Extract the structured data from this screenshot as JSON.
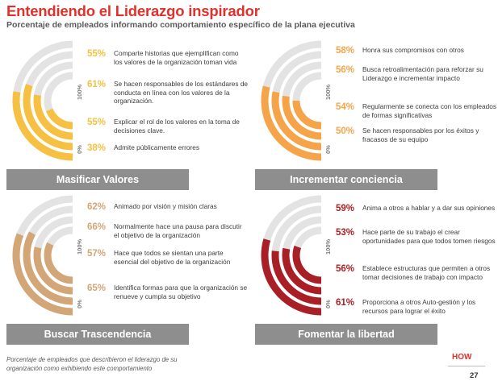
{
  "header": {
    "title": "Entendiendo el Liderazgo inspirador",
    "subtitle": "Porcentaje de empleados informando comportamiento específico de la plana ejecutiva"
  },
  "scale": {
    "max_label": "100%",
    "min_label": "0%"
  },
  "colors": {
    "track": "#e3e3e3",
    "band": "#8e8e8e",
    "title": "#e0312c"
  },
  "chart_data": [
    {
      "type": "radial-bar",
      "title": "Masificar Valores",
      "color": "#f6c142",
      "range": [
        0,
        100
      ],
      "items": [
        {
          "value": 55,
          "label": "55%",
          "text": "Comparte historias que ejemplifican como los valores de la organización toman vida"
        },
        {
          "value": 61,
          "label": "61%",
          "text": "Se hacen responsables de los estándares de conducta en línea con los valores de la organización."
        },
        {
          "value": 55,
          "label": "55%",
          "text": "Explicar el rol de los valores en la toma de decisiones clave."
        },
        {
          "value": 38,
          "label": "38%",
          "text": "Admite públicamente errores"
        }
      ]
    },
    {
      "type": "radial-bar",
      "title": "Incrementar conciencia",
      "color": "#f6a44a",
      "range": [
        0,
        100
      ],
      "items": [
        {
          "value": 58,
          "label": "58%",
          "text": "Honra sus compromisos con otros"
        },
        {
          "value": 56,
          "label": "56%",
          "text": "Busca retroalimentación para reforzar su Liderazgo e incrementar impacto"
        },
        {
          "value": 54,
          "label": "54%",
          "text": "Regularmente se conecta con los empleados de formas significativas"
        },
        {
          "value": 50,
          "label": "50%",
          "text": "Se hacen responsables por los éxitos y fracasos de su equipo"
        }
      ]
    },
    {
      "type": "radial-bar",
      "title": "Buscar Trascendencia",
      "color": "#d2a677",
      "range": [
        0,
        100
      ],
      "items": [
        {
          "value": 62,
          "label": "62%",
          "text": "Animado por visión y misión claras"
        },
        {
          "value": 66,
          "label": "66%",
          "text": "Normalmente hace una pausa para discutir el objetivo de la organización"
        },
        {
          "value": 57,
          "label": "57%",
          "text": "Hace que todos se sientan una parte esencial del objetivo de la organización"
        },
        {
          "value": 65,
          "label": "65%",
          "text": "Identifica formas para que la organización se renueve y cumpla su objetivo"
        }
      ]
    },
    {
      "type": "radial-bar",
      "title": "Fomentar la libertad",
      "color": "#a82025",
      "range": [
        0,
        100
      ],
      "items": [
        {
          "value": 59,
          "label": "59%",
          "text": "Anima a otros a hablar y a dar sus opiniones"
        },
        {
          "value": 53,
          "label": "53%",
          "text": "Hace parte de su trabajo el crear oportunidades para que todos tomen riesgos"
        },
        {
          "value": 56,
          "label": "56%",
          "text": "Establece estructuras que permiten a otros tomar decisiones de trabajo con impacto"
        },
        {
          "value": 61,
          "label": "61%",
          "text": "Proporciona a otros Auto-gestión y los recursos para lograr el éxito"
        }
      ]
    }
  ],
  "footer": {
    "note": "Porcentaje de empleados que describieron el liderazgo de su organización como exhibiendo este comportamiento",
    "brand": "HOW",
    "page_number": "27"
  }
}
